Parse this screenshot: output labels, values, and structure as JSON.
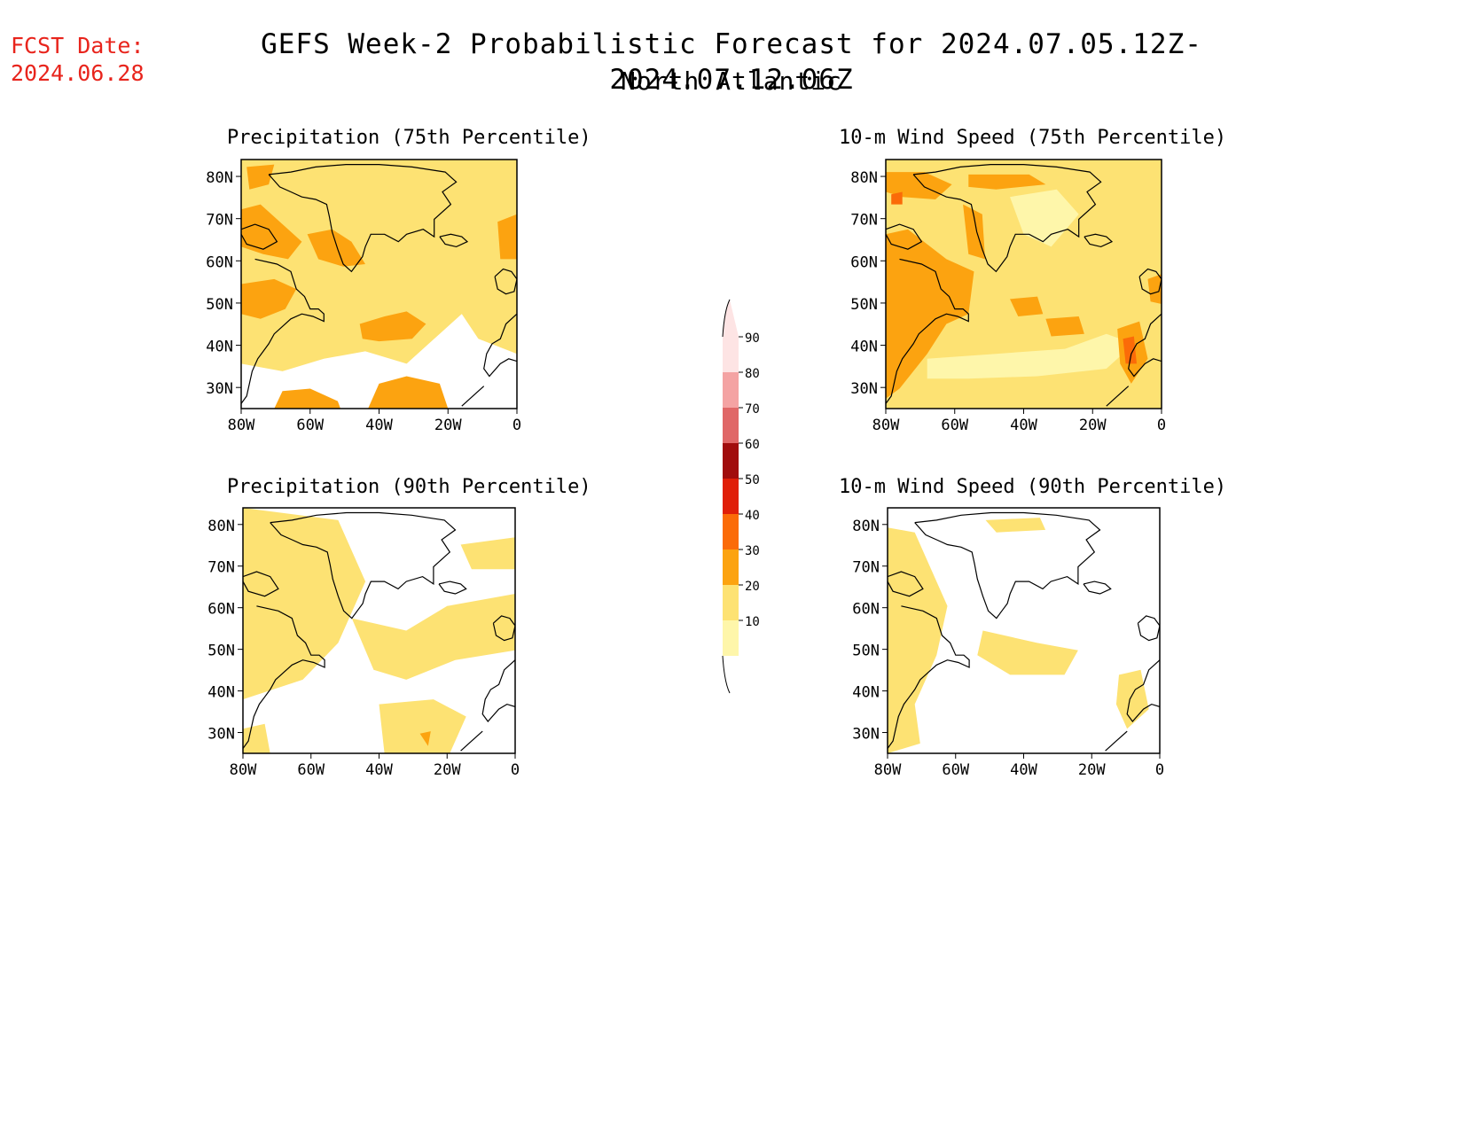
{
  "header": {
    "fcst_label": "FCST Date:",
    "fcst_date": "2024.06.28",
    "title": "GEFS Week-2 Probabilistic Forecast for 2024.07.05.12Z-2024.07.12.06Z",
    "subtitle": "North Atlantic"
  },
  "axes": {
    "lat_ticks": [
      "80N",
      "70N",
      "60N",
      "50N",
      "40N",
      "30N"
    ],
    "lon_ticks": [
      "80W",
      "60W",
      "40W",
      "20W",
      "0"
    ]
  },
  "panels": [
    {
      "title": "Precipitation (75th Percentile)",
      "coverage": "high"
    },
    {
      "title": "10-m Wind Speed (75th Percentile)",
      "coverage": "high"
    },
    {
      "title": "Precipitation (90th Percentile)",
      "coverage": "low"
    },
    {
      "title": "10-m Wind Speed (90th Percentile)",
      "coverage": "low"
    }
  ],
  "legend": {
    "levels": [
      "90",
      "80",
      "70",
      "60",
      "50",
      "40",
      "30",
      "20",
      "10"
    ],
    "colors": [
      "#fde4e4",
      "#f4a3a3",
      "#e06767",
      "#a10d0d",
      "#e01f08",
      "#fb6b08",
      "#fca310",
      "#fde273",
      "#fef6aa"
    ]
  }
}
